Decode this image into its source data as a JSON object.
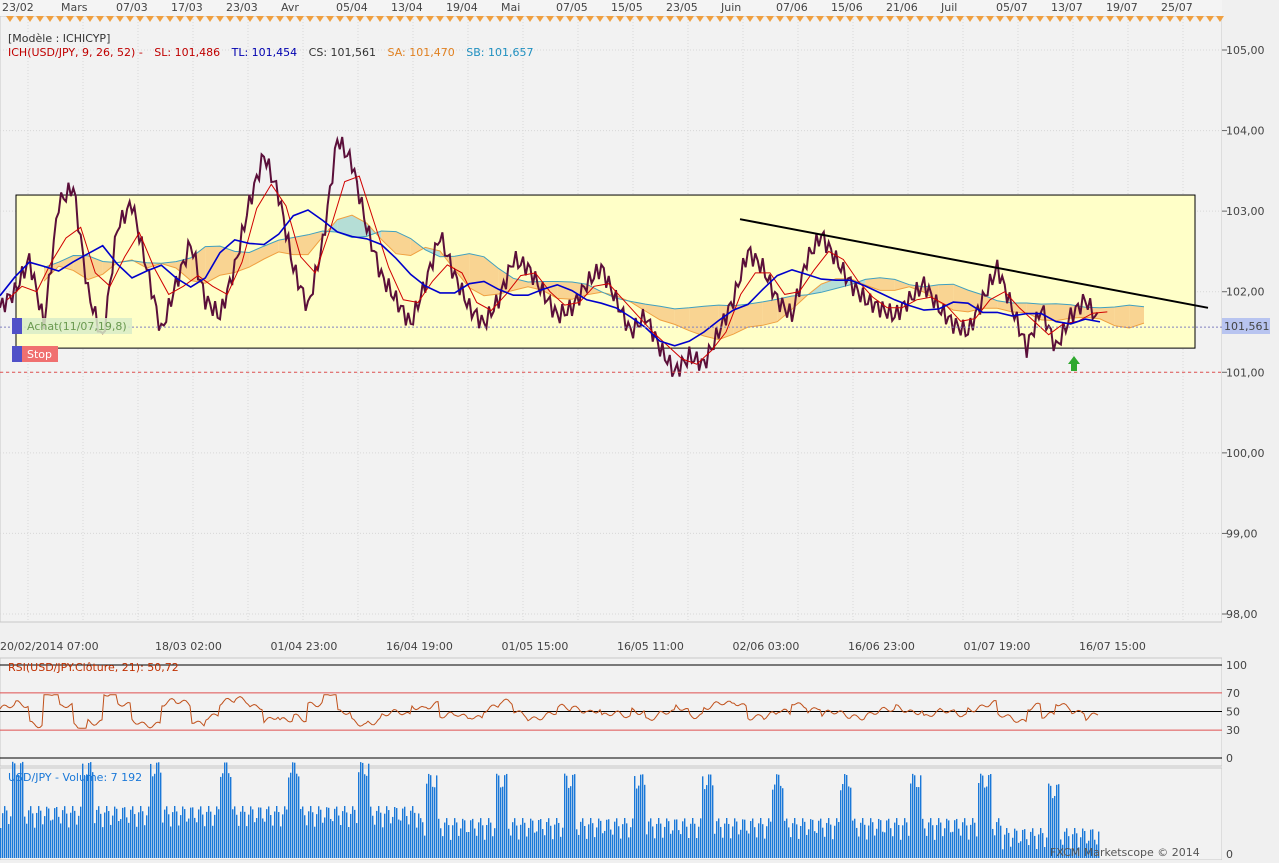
{
  "chart_data": {
    "type": "line",
    "title": "[Modèle : ICHICYP]",
    "indicator_legend": {
      "prefix": "ICH(USD/JPY, 9, 26, 52) -",
      "sl": "SL: 101,486",
      "tl": "TL: 101,454",
      "cs": "CS: 101,561",
      "sa": "SA: 101,470",
      "sb": "SB: 101,657"
    },
    "top_date_labels": [
      "23/02",
      "Mars",
      "07/03",
      "17/03",
      "23/03",
      "Avr",
      "05/04",
      "13/04",
      "19/04",
      "Mai",
      "07/05",
      "15/05",
      "23/05",
      "Juin",
      "07/06",
      "15/06",
      "21/06",
      "Juil",
      "05/07",
      "13/07",
      "19/07",
      "25/07"
    ],
    "bottom_date_labels": [
      "20/02/2014 07:00",
      "18/03 02:00",
      "01/04 23:00",
      "16/04 19:00",
      "01/05 15:00",
      "16/05 11:00",
      "02/06 03:00",
      "16/06 23:00",
      "01/07 19:00",
      "16/07 15:00"
    ],
    "y_ticks": [
      "105,00",
      "104,00",
      "103,00",
      "102,00",
      "101,00",
      "100,00",
      "99,00",
      "98,00"
    ],
    "ylim": [
      97.9,
      105.3
    ],
    "current_price": "101,561",
    "range_box": {
      "high": 103.2,
      "low": 101.3
    },
    "resistance_line": {
      "from": 102.9,
      "to": 101.8
    },
    "annotations": {
      "buy": "Achat(11/07,19,8)",
      "stop": "Stop"
    },
    "buy_level": 101.56,
    "stop_level": 101.0,
    "price_series": [
      101.8,
      102.0,
      102.4,
      101.6,
      103.1,
      103.3,
      102.0,
      101.4,
      102.8,
      103.1,
      102.3,
      101.5,
      102.1,
      102.6,
      101.9,
      101.7,
      102.3,
      103.1,
      103.7,
      103.2,
      102.3,
      101.8,
      102.6,
      103.9,
      103.6,
      102.8,
      102.2,
      101.9,
      101.6,
      102.1,
      102.7,
      102.2,
      101.8,
      101.6,
      101.9,
      102.4,
      102.3,
      102.0,
      101.7,
      101.8,
      102.1,
      102.3,
      101.9,
      101.5,
      101.7,
      101.3,
      101.0,
      101.2,
      101.1,
      101.5,
      101.9,
      102.5,
      102.3,
      101.9,
      101.7,
      102.4,
      102.7,
      102.4,
      102.1,
      101.9,
      101.8,
      101.7,
      101.9,
      102.1,
      101.8,
      101.6,
      101.5,
      101.9,
      102.3,
      101.8,
      101.3,
      101.8,
      101.3,
      101.7,
      101.9,
      101.6
    ],
    "rsi": {
      "label": "RSI(USD/JPY.Clôture, 21): 50,72",
      "levels": [
        "100",
        "70",
        "50",
        "30",
        "0"
      ]
    },
    "volume": {
      "label": "USD/JPY - Volume: 7 192"
    },
    "copyright": "FXCM Marketscope © 2014",
    "colors": {
      "price": "#5b0f3a",
      "tenkan": "#d00000",
      "kijun": "#0000cc",
      "cloud_bull": "#a8d8d8",
      "cloud_bear": "#f8cc88",
      "box": "#ffffc8",
      "rsi": "#c0501a",
      "volume": "#1a78d8",
      "price_tag": "#b8c4f0"
    }
  }
}
